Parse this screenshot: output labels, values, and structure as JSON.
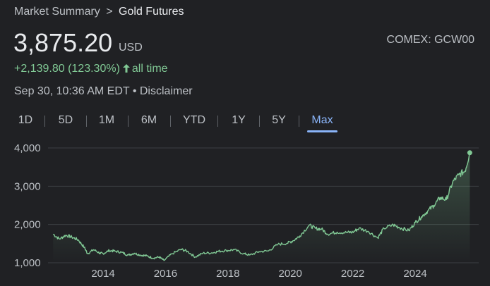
{
  "breadcrumb": {
    "parent": "Market Summary",
    "separator": ">",
    "current": "Gold Futures"
  },
  "quote": {
    "price": "3,875.20",
    "currency": "USD",
    "exchange": "COMEX: GCW00",
    "change": "+2,139.80 (123.30%)",
    "change_arrow_icon": "arrow-up-icon",
    "change_period": "all time",
    "timestamp": "Sep 30, 10:36 AM EDT",
    "bullet": "•",
    "disclaimer": "Disclaimer"
  },
  "tabs": [
    {
      "label": "1D",
      "active": false
    },
    {
      "label": "5D",
      "active": false
    },
    {
      "label": "1M",
      "active": false
    },
    {
      "label": "6M",
      "active": false
    },
    {
      "label": "YTD",
      "active": false
    },
    {
      "label": "1Y",
      "active": false
    },
    {
      "label": "5Y",
      "active": false
    },
    {
      "label": "Max",
      "active": true
    }
  ],
  "colors": {
    "background": "#202124",
    "positive": "#81c995",
    "line": "#81c995",
    "active_tab": "#8ab4f8",
    "gridline": "#3c4043",
    "axis_text": "#bdc1c6"
  },
  "chart_data": {
    "type": "area",
    "title": "",
    "xlabel": "",
    "ylabel": "",
    "y_ticks": [
      1000,
      2000,
      3000,
      4000
    ],
    "y_tick_labels": [
      "1,000",
      "2,000",
      "3,000",
      "4,000"
    ],
    "x_ticks": [
      2014,
      2016,
      2018,
      2020,
      2022,
      2024
    ],
    "x_tick_labels": [
      "2014",
      "2016",
      "2018",
      "2020",
      "2022",
      "2024"
    ],
    "xlim": [
      2012.4,
      2025.75
    ],
    "ylim": [
      1000,
      4000
    ],
    "grid": true,
    "series": [
      {
        "x": [
          2012.4,
          2012.6,
          2012.8,
          2013.0,
          2013.2,
          2013.4,
          2013.5,
          2013.7,
          2013.9,
          2014.0,
          2014.2,
          2014.4,
          2014.6,
          2014.8,
          2015.0,
          2015.2,
          2015.4,
          2015.6,
          2015.8,
          2015.95,
          2016.2,
          2016.5,
          2016.7,
          2016.95,
          2017.2,
          2017.5,
          2017.7,
          2017.95,
          2018.2,
          2018.5,
          2018.7,
          2019.0,
          2019.3,
          2019.6,
          2019.9,
          2020.1,
          2020.3,
          2020.6,
          2020.8,
          2021.0,
          2021.2,
          2021.5,
          2021.8,
          2022.0,
          2022.2,
          2022.5,
          2022.8,
          2023.0,
          2023.3,
          2023.5,
          2023.8,
          2024.0,
          2024.2,
          2024.4,
          2024.6,
          2024.8,
          2025.0,
          2025.2,
          2025.4,
          2025.6,
          2025.75
        ],
        "y": [
          1750,
          1620,
          1720,
          1670,
          1600,
          1400,
          1240,
          1340,
          1250,
          1240,
          1320,
          1300,
          1270,
          1200,
          1250,
          1200,
          1180,
          1120,
          1150,
          1060,
          1230,
          1350,
          1300,
          1150,
          1250,
          1260,
          1300,
          1320,
          1340,
          1240,
          1200,
          1290,
          1310,
          1480,
          1510,
          1580,
          1700,
          1980,
          1900,
          1880,
          1750,
          1800,
          1790,
          1800,
          1900,
          1820,
          1650,
          1900,
          1990,
          1920,
          1840,
          2050,
          2200,
          2350,
          2500,
          2700,
          2650,
          3100,
          3300,
          3400,
          3875
        ]
      }
    ],
    "last_point": {
      "x": 2025.75,
      "y": 3875
    }
  }
}
